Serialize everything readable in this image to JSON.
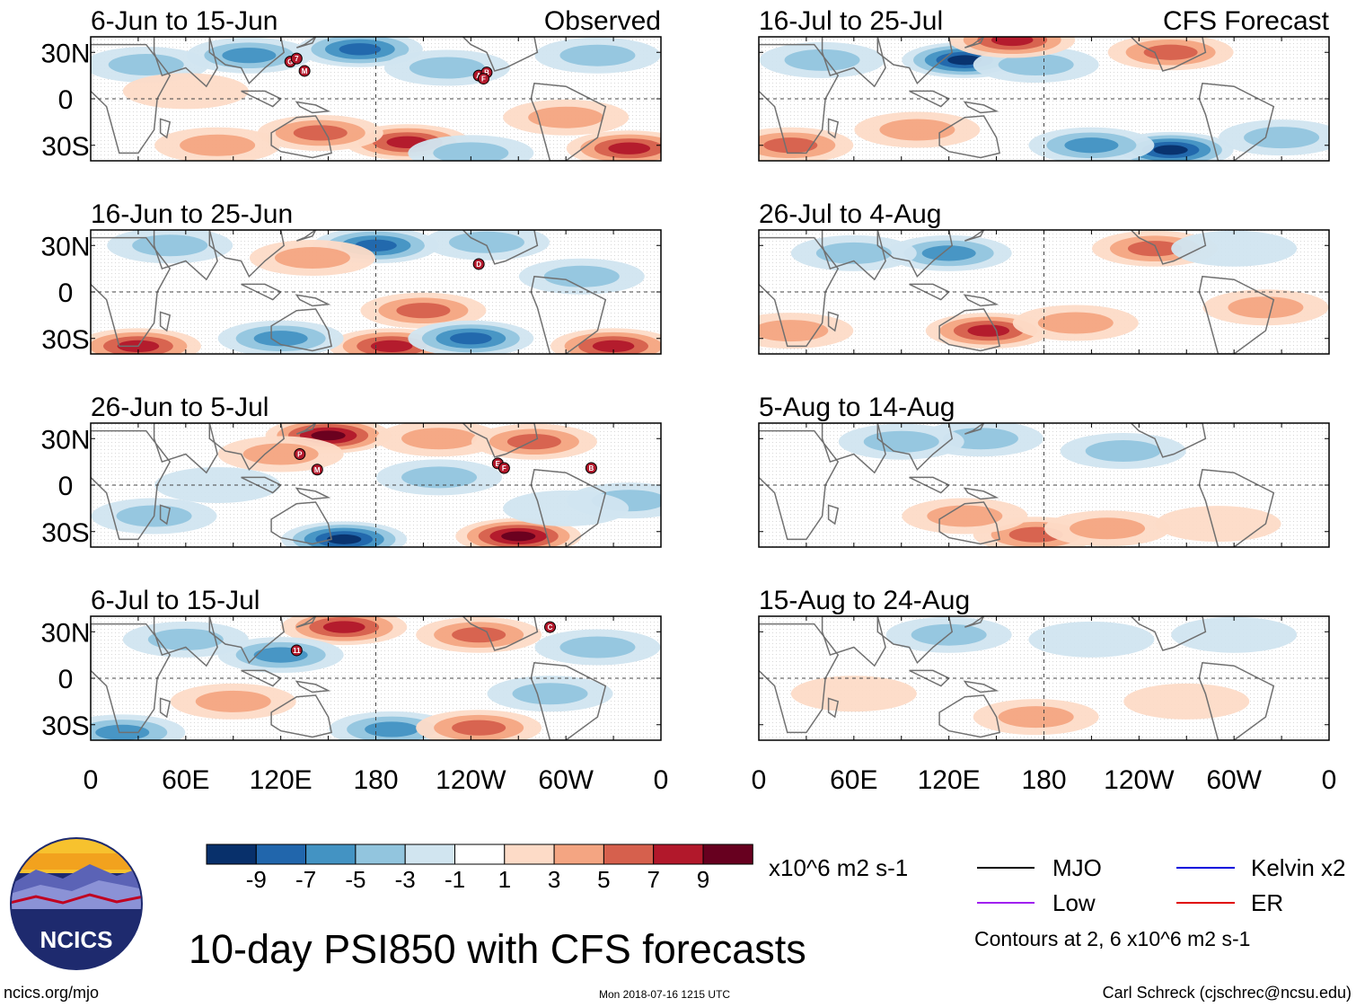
{
  "title": "10-day PSI850 with CFS forecasts",
  "units": "x10^6 m2 s-1",
  "logo_text": "NCICS",
  "footer": {
    "url": "ncics.org/mjo",
    "timestamp": "Mon 2018-07-16 1215 UTC",
    "author": "Carl Schreck (cjschrec@ncsu.edu)"
  },
  "lat_labels": [
    "30N",
    "0",
    "30S"
  ],
  "lon_labels": [
    "0",
    "60E",
    "120E",
    "180",
    "120W",
    "60W",
    "0"
  ],
  "colorbar": {
    "colors": [
      "#08306b",
      "#2166ac",
      "#4393c3",
      "#92c5de",
      "#d1e5f0",
      "#ffffff",
      "#fddbc7",
      "#f4a582",
      "#d6604d",
      "#b2182b",
      "#67001f"
    ],
    "labels": [
      "-9",
      "-7",
      "-5",
      "-3",
      "-1",
      "1",
      "3",
      "5",
      "7",
      "9"
    ]
  },
  "legend": {
    "items": [
      {
        "label": "MJO",
        "color": "#000000"
      },
      {
        "label": "Kelvin x2",
        "color": "#0000dd"
      },
      {
        "label": "Low",
        "color": "#a020f0"
      },
      {
        "label": "ER",
        "color": "#e00000"
      }
    ],
    "note": "Contours at 2, 6 x10^6 m2 s-1"
  },
  "panels": [
    {
      "title": "6-Jun to 15-Jun",
      "tag": "Observed",
      "blobs": [
        {
          "lon": 170,
          "lat": 32,
          "v": -7
        },
        {
          "lon": 100,
          "lat": 28,
          "v": -5
        },
        {
          "lon": 35,
          "lat": 22,
          "v": -3
        },
        {
          "lon": 225,
          "lat": 20,
          "v": -3
        },
        {
          "lon": 320,
          "lat": 28,
          "v": -3
        },
        {
          "lon": 200,
          "lat": -28,
          "v": 7
        },
        {
          "lon": 145,
          "lat": -22,
          "v": 5
        },
        {
          "lon": 80,
          "lat": -30,
          "v": 3
        },
        {
          "lon": 340,
          "lat": -32,
          "v": 7
        },
        {
          "lon": 300,
          "lat": -12,
          "v": 3
        },
        {
          "lon": 60,
          "lat": 5,
          "v": 1
        },
        {
          "lon": 240,
          "lat": -35,
          "v": -3
        }
      ],
      "storms": [
        {
          "lon": 126,
          "lat": 24,
          "t": "G"
        },
        {
          "lon": 130,
          "lat": 26,
          "t": "7"
        },
        {
          "lon": 135,
          "lat": 18,
          "t": "M"
        },
        {
          "lon": 245,
          "lat": 15,
          "t": "A"
        },
        {
          "lon": 250,
          "lat": 17,
          "t": "B"
        },
        {
          "lon": 248,
          "lat": 13,
          "t": "F"
        }
      ]
    },
    {
      "title": "16-Jun to 25-Jun",
      "tag": "",
      "blobs": [
        {
          "lon": 180,
          "lat": 30,
          "v": -7
        },
        {
          "lon": 250,
          "lat": 32,
          "v": -3
        },
        {
          "lon": 50,
          "lat": 30,
          "v": -3
        },
        {
          "lon": 140,
          "lat": 22,
          "v": 3
        },
        {
          "lon": 210,
          "lat": -12,
          "v": 5
        },
        {
          "lon": 190,
          "lat": -35,
          "v": 7
        },
        {
          "lon": 240,
          "lat": -30,
          "v": -7
        },
        {
          "lon": 120,
          "lat": -30,
          "v": -5
        },
        {
          "lon": 30,
          "lat": -35,
          "v": 7
        },
        {
          "lon": 330,
          "lat": -35,
          "v": 7
        },
        {
          "lon": 310,
          "lat": 10,
          "v": -3
        }
      ],
      "storms": [
        {
          "lon": 245,
          "lat": 18,
          "t": "D"
        }
      ]
    },
    {
      "title": "26-Jun to 5-Jul",
      "tag": "",
      "blobs": [
        {
          "lon": 150,
          "lat": 32,
          "v": 9
        },
        {
          "lon": 220,
          "lat": 30,
          "v": 3
        },
        {
          "lon": 280,
          "lat": 28,
          "v": 5
        },
        {
          "lon": 120,
          "lat": 20,
          "v": 3
        },
        {
          "lon": 160,
          "lat": -35,
          "v": -9
        },
        {
          "lon": 270,
          "lat": -33,
          "v": 9
        },
        {
          "lon": 40,
          "lat": -20,
          "v": -3
        },
        {
          "lon": 220,
          "lat": 5,
          "v": -3
        },
        {
          "lon": 80,
          "lat": 0,
          "v": -1
        },
        {
          "lon": 340,
          "lat": -10,
          "v": -3
        },
        {
          "lon": 300,
          "lat": -15,
          "v": -1
        }
      ],
      "storms": [
        {
          "lon": 132,
          "lat": 20,
          "t": "P"
        },
        {
          "lon": 143,
          "lat": 10,
          "t": "M"
        },
        {
          "lon": 257,
          "lat": 14,
          "t": "E"
        },
        {
          "lon": 261,
          "lat": 11,
          "t": "F"
        },
        {
          "lon": 316,
          "lat": 11,
          "t": "B"
        }
      ]
    },
    {
      "title": "6-Jul to 15-Jul",
      "tag": "",
      "blobs": [
        {
          "lon": 160,
          "lat": 33,
          "v": 7
        },
        {
          "lon": 245,
          "lat": 28,
          "v": 5
        },
        {
          "lon": 120,
          "lat": 15,
          "v": -5
        },
        {
          "lon": 60,
          "lat": 25,
          "v": -3
        },
        {
          "lon": 190,
          "lat": -33,
          "v": -5
        },
        {
          "lon": 245,
          "lat": -32,
          "v": 5
        },
        {
          "lon": 20,
          "lat": -35,
          "v": -5
        },
        {
          "lon": 320,
          "lat": 20,
          "v": -3
        },
        {
          "lon": 290,
          "lat": -10,
          "v": -3
        },
        {
          "lon": 90,
          "lat": -15,
          "v": 3
        }
      ],
      "storms": [
        {
          "lon": 130,
          "lat": 18,
          "t": "11"
        },
        {
          "lon": 290,
          "lat": 33,
          "t": "C"
        }
      ]
    },
    {
      "title": "16-Jul to 25-Jul",
      "tag": "CFS Forecast",
      "blobs": [
        {
          "lon": 130,
          "lat": 25,
          "v": -9
        },
        {
          "lon": 175,
          "lat": 22,
          "v": -3
        },
        {
          "lon": 260,
          "lat": -33,
          "v": -9
        },
        {
          "lon": 210,
          "lat": -30,
          "v": -5
        },
        {
          "lon": 260,
          "lat": 30,
          "v": 5
        },
        {
          "lon": 160,
          "lat": 38,
          "v": 7
        },
        {
          "lon": 100,
          "lat": -20,
          "v": 3
        },
        {
          "lon": 20,
          "lat": -30,
          "v": 5
        },
        {
          "lon": 330,
          "lat": -25,
          "v": -3
        },
        {
          "lon": 40,
          "lat": 25,
          "v": -3
        }
      ],
      "storms": []
    },
    {
      "title": "26-Jul to 4-Aug",
      "tag": "",
      "blobs": [
        {
          "lon": 120,
          "lat": 25,
          "v": -5
        },
        {
          "lon": 60,
          "lat": 25,
          "v": -3
        },
        {
          "lon": 250,
          "lat": 28,
          "v": 5
        },
        {
          "lon": 145,
          "lat": -25,
          "v": 7
        },
        {
          "lon": 200,
          "lat": -20,
          "v": 3
        },
        {
          "lon": 20,
          "lat": -25,
          "v": 3
        },
        {
          "lon": 320,
          "lat": -10,
          "v": 3
        },
        {
          "lon": 300,
          "lat": 28,
          "v": -1
        }
      ],
      "storms": []
    },
    {
      "title": "5-Aug to 14-Aug",
      "tag": "",
      "blobs": [
        {
          "lon": 140,
          "lat": 30,
          "v": -3
        },
        {
          "lon": 90,
          "lat": 28,
          "v": -3
        },
        {
          "lon": 230,
          "lat": 22,
          "v": -3
        },
        {
          "lon": 175,
          "lat": -32,
          "v": 5
        },
        {
          "lon": 220,
          "lat": -28,
          "v": 3
        },
        {
          "lon": 130,
          "lat": -20,
          "v": 3
        },
        {
          "lon": 290,
          "lat": -25,
          "v": 1
        }
      ],
      "storms": []
    },
    {
      "title": "15-Aug to 24-Aug",
      "tag": "",
      "blobs": [
        {
          "lon": 120,
          "lat": 28,
          "v": -3
        },
        {
          "lon": 210,
          "lat": 25,
          "v": -1
        },
        {
          "lon": 175,
          "lat": -25,
          "v": 3
        },
        {
          "lon": 60,
          "lat": -10,
          "v": 1
        },
        {
          "lon": 270,
          "lat": -15,
          "v": 1
        },
        {
          "lon": 300,
          "lat": 28,
          "v": -1
        }
      ],
      "storms": []
    }
  ]
}
